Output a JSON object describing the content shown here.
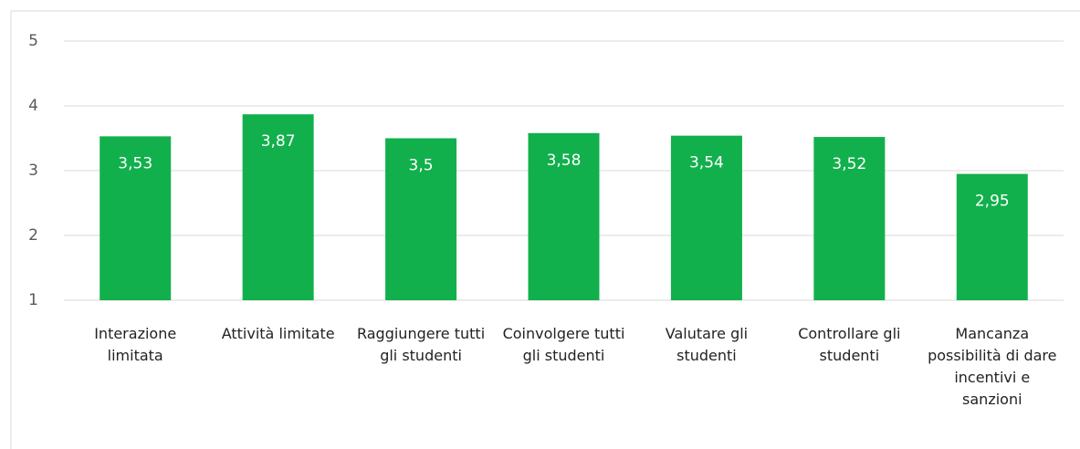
{
  "chart_data": {
    "type": "bar",
    "categories": [
      "Interazione limitata",
      "Attività limitate",
      "Raggiungere tutti gli studenti",
      "Coinvolgere tutti gli studenti",
      "Valutare gli studenti",
      "Controllare gli studenti",
      "Mancanza possibilità di dare incentivi e sanzioni"
    ],
    "values": [
      3.53,
      3.87,
      3.5,
      3.58,
      3.54,
      3.52,
      2.95
    ],
    "value_labels": [
      "3,53",
      "3,87",
      "3,5",
      "3,58",
      "3,54",
      "3,52",
      "2,95"
    ],
    "color": "#12b04c",
    "ylim": [
      1,
      5
    ],
    "yticks": [
      1,
      2,
      3,
      4,
      5
    ],
    "grid": true
  }
}
